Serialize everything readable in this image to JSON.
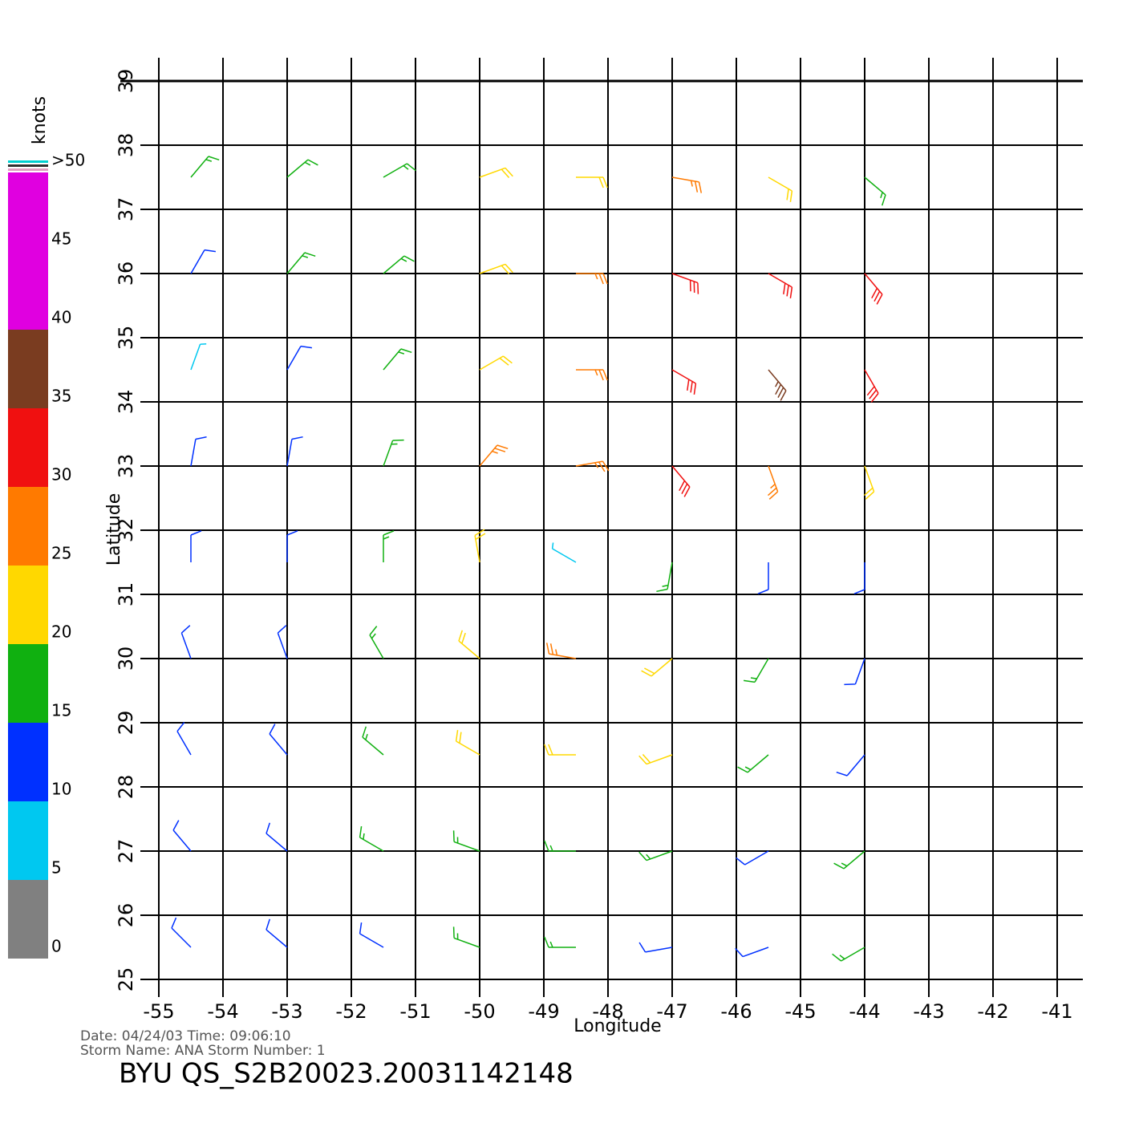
{
  "chart_data": {
    "type": "wind-barbs",
    "xlabel": "Longitude",
    "ylabel": "Latitude",
    "xlim": [
      -55,
      -41
    ],
    "ylim": [
      25,
      39
    ],
    "xticks": [
      -55,
      -54,
      -53,
      -52,
      -51,
      -50,
      -49,
      -48,
      -47,
      -46,
      -45,
      -44,
      -43,
      -42,
      -41
    ],
    "yticks": [
      25,
      26,
      27,
      28,
      29,
      30,
      31,
      32,
      33,
      34,
      35,
      36,
      37,
      38,
      39
    ],
    "grid": true,
    "colorbar": {
      "label": "knots",
      "ticks": [
        0,
        5,
        10,
        15,
        20,
        25,
        30,
        35,
        40,
        45,
        {
          "value": 50,
          "label": ">50"
        }
      ],
      "colors": [
        "#808080",
        "#00c8f0",
        "#0030ff",
        "#10b010",
        "#ffd800",
        "#ff7a00",
        "#f01010",
        "#7a3c20",
        "#e000e0"
      ],
      "bands": [
        [
          0,
          5
        ],
        [
          5,
          10
        ],
        [
          10,
          15
        ],
        [
          15,
          20
        ],
        [
          20,
          25
        ],
        [
          25,
          30
        ],
        [
          30,
          35
        ],
        [
          35,
          40
        ],
        [
          40,
          50
        ]
      ]
    },
    "x": [
      -54.5,
      -53,
      -51.5,
      -50,
      -48.5,
      -47,
      -45.5,
      -44,
      -54.5,
      -53,
      -51.5,
      -50,
      -48.5,
      -47,
      -45.5,
      -44,
      -54.5,
      -53,
      -51.5,
      -50,
      -48.5,
      -47,
      -45.5,
      -44,
      -54.5,
      -53,
      -51.5,
      -50,
      -48.5,
      -47,
      -45.5,
      -44,
      -54.5,
      -53,
      -51.5,
      -50,
      -48.5,
      -47,
      -45.5,
      -44,
      -54.5,
      -53,
      -51.5,
      -50,
      -48.5,
      -47,
      -45.5,
      -44,
      -54.5,
      -53,
      -51.5,
      -50,
      -48.5,
      -47,
      -45.5,
      -44,
      -54.5,
      -53,
      -51.5,
      -50,
      -48.5,
      -47,
      -45.5,
      -44,
      -54.5,
      -53,
      -51.5,
      -50,
      -48.5,
      -47,
      -45.5,
      -44
    ],
    "y": [
      25.5,
      25.5,
      25.5,
      25.5,
      25.5,
      25.5,
      25.5,
      25.5,
      27,
      27,
      27,
      27,
      27,
      27,
      27,
      27,
      28.5,
      28.5,
      28.5,
      28.5,
      28.5,
      28.5,
      28.5,
      28.5,
      30,
      30,
      30,
      30,
      30,
      30,
      30,
      30,
      31.5,
      31.5,
      31.5,
      31.5,
      31.5,
      31.5,
      31.5,
      31.5,
      33,
      33,
      33,
      33,
      33,
      33,
      33,
      33,
      34.5,
      34.5,
      34.5,
      34.5,
      34.5,
      34.5,
      34.5,
      34.5,
      36,
      36,
      36,
      36,
      36,
      36,
      36,
      36,
      37.5,
      37.5,
      37.5,
      37.5,
      37.5,
      37.5,
      37.5,
      37.5
    ],
    "speed": [
      12,
      12,
      14,
      17,
      16,
      14,
      13,
      16,
      12,
      13,
      16,
      18,
      18,
      17,
      14,
      15,
      11,
      13,
      17,
      21,
      22,
      21,
      16,
      13,
      12,
      13,
      18,
      21,
      27,
      22,
      18,
      14,
      12,
      13,
      18,
      24,
      8,
      17,
      13,
      11,
      10,
      14,
      18,
      27,
      28,
      30,
      27,
      22,
      8,
      13,
      18,
      23,
      28,
      33,
      37,
      33,
      12,
      15,
      19,
      22,
      27,
      30,
      33,
      32,
      18,
      17,
      18,
      22,
      23,
      25,
      24,
      19
    ],
    "direction": [
      315,
      310,
      300,
      290,
      270,
      260,
      250,
      240,
      320,
      310,
      300,
      290,
      270,
      250,
      240,
      230,
      330,
      320,
      310,
      300,
      270,
      250,
      230,
      220,
      340,
      340,
      330,
      310,
      280,
      230,
      210,
      200,
      0,
      0,
      0,
      350,
      300,
      190,
      180,
      180,
      10,
      10,
      20,
      40,
      80,
      140,
      160,
      160,
      20,
      30,
      40,
      60,
      90,
      120,
      140,
      150,
      30,
      40,
      50,
      70,
      90,
      110,
      120,
      140,
      40,
      50,
      60,
      70,
      90,
      100,
      120,
      130
    ],
    "annotations": [
      "Date: 04/24/03   Time: 09:06:10",
      "Storm  Name: ANA   Storm  Number: 1"
    ],
    "title": "BYU  QS_S2B20023.20031142148"
  }
}
